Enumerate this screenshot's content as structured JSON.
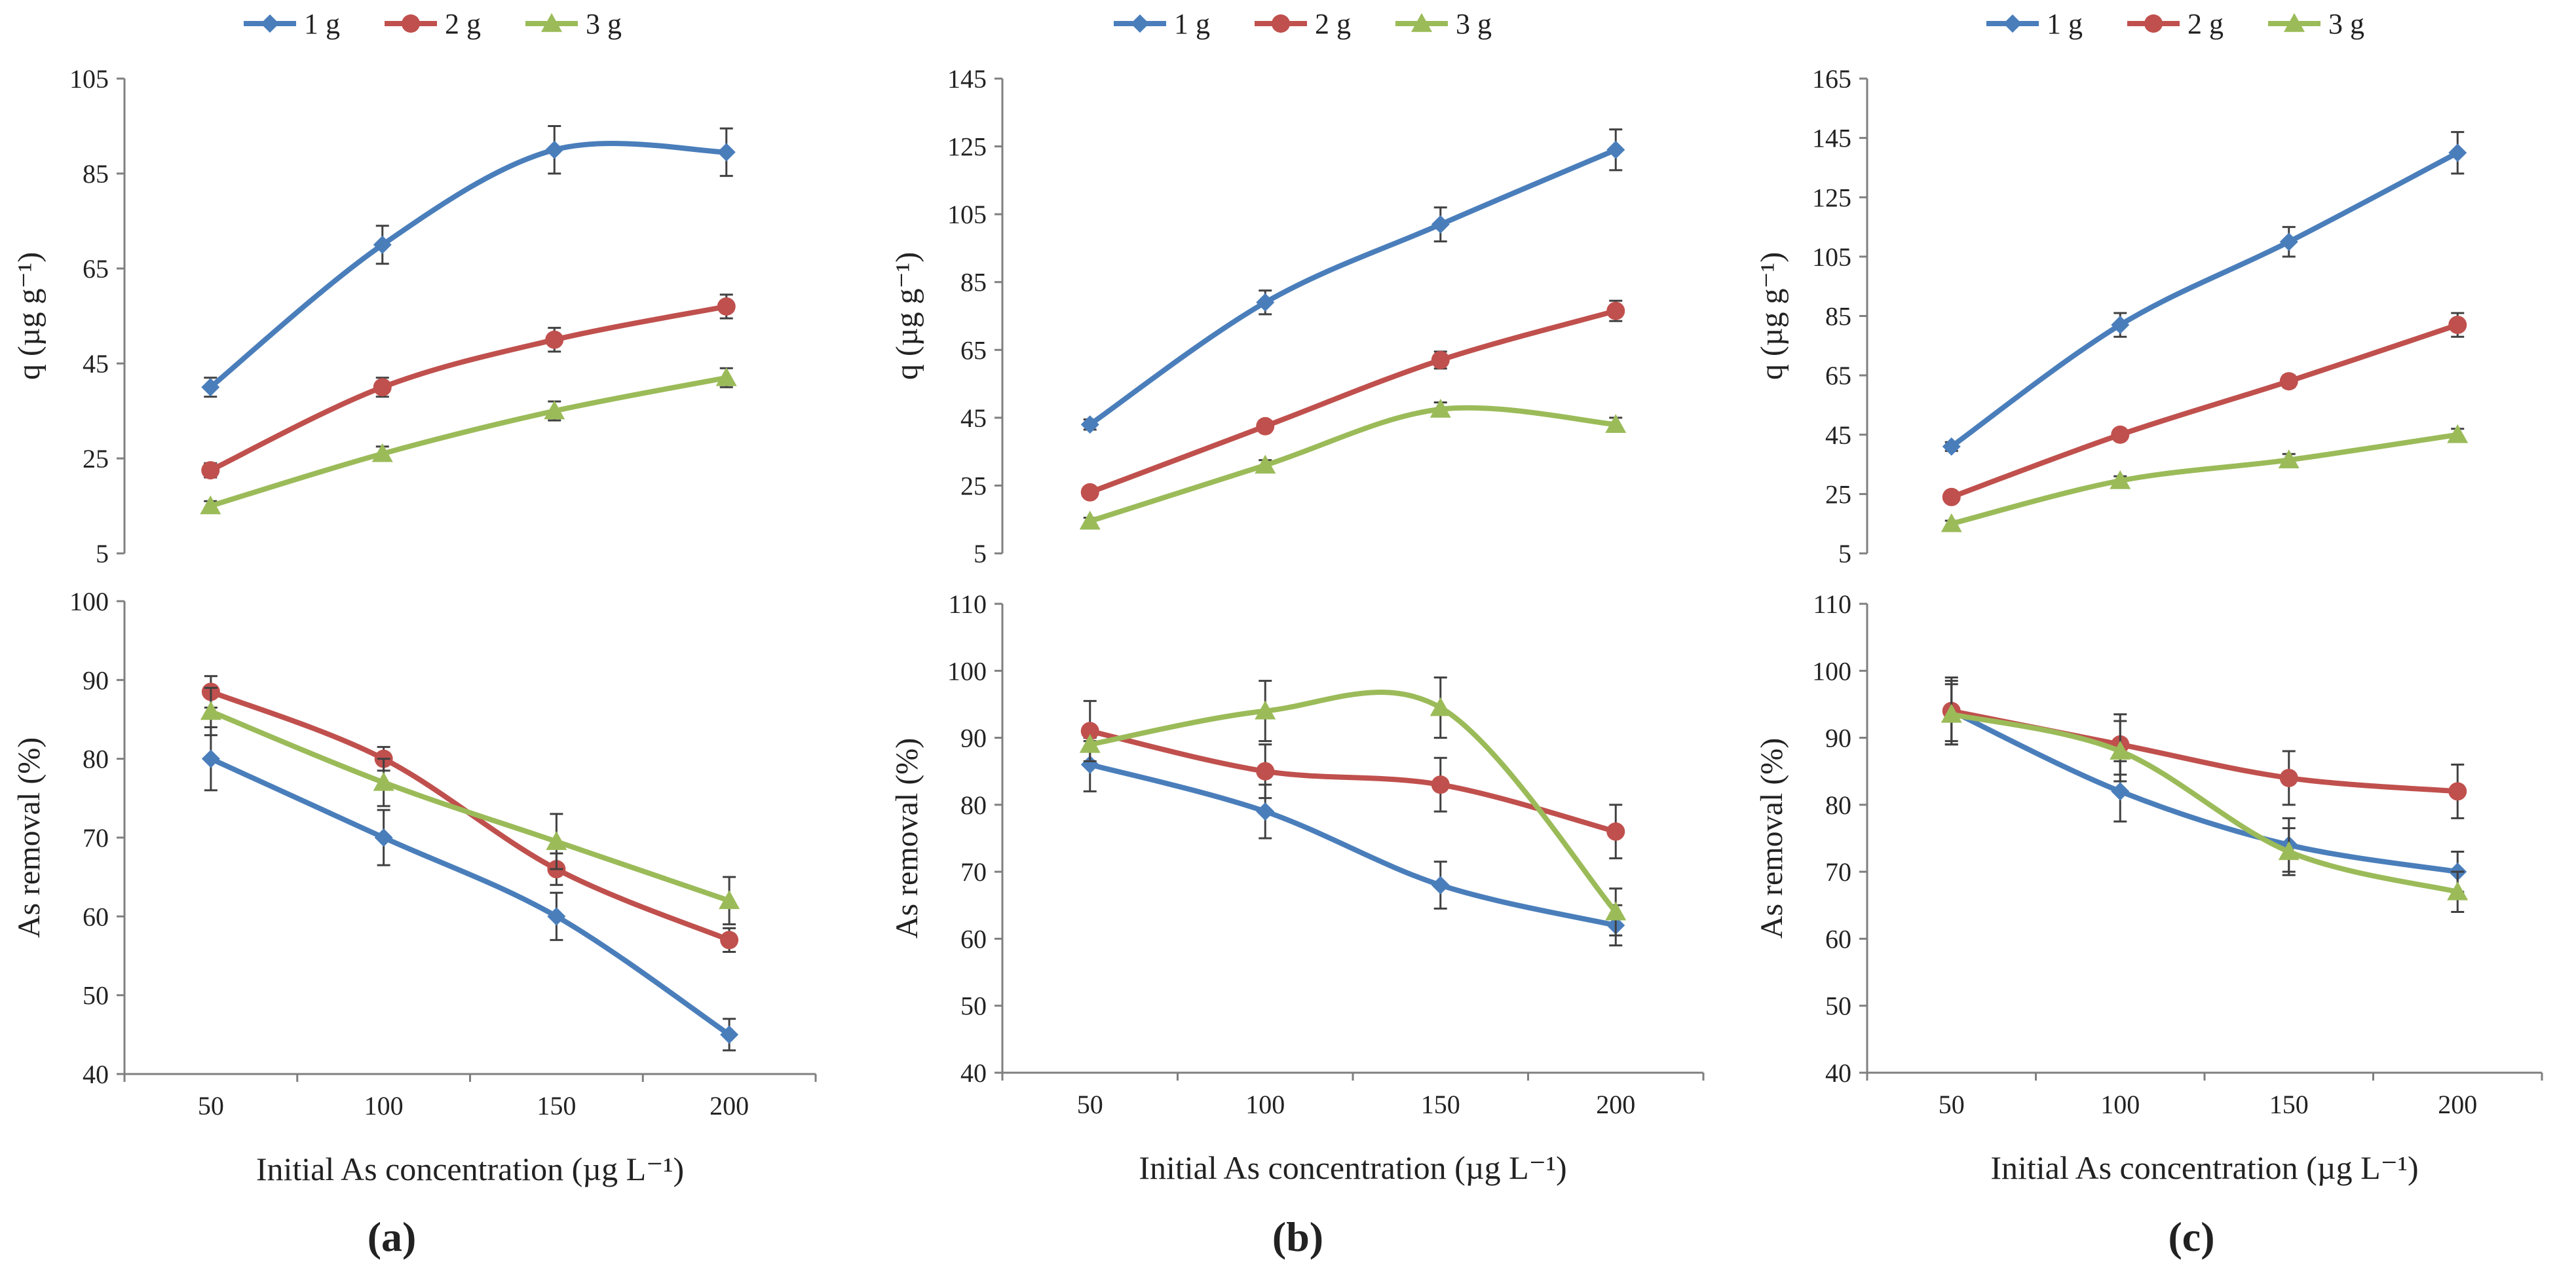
{
  "legend": [
    "1 g",
    "2 g",
    "3 g"
  ],
  "colors": {
    "1 g": "#4a7ebb",
    "2 g": "#c0504d",
    "3 g": "#9bbb59"
  },
  "panels": [
    {
      "label": "(a)",
      "xlabel": "Initial As concentration (µg L⁻¹)"
    },
    {
      "label": "(b)",
      "xlabel": "Initial As concentration (µg L⁻¹)"
    },
    {
      "label": "(c)",
      "xlabel": "Initial As concentration (µg L⁻¹)"
    }
  ],
  "chart_data": [
    {
      "type": "line",
      "panel": "a",
      "row": "top",
      "ylabel": "q (µg g⁻¹)",
      "xlabel": "",
      "categories": [
        50,
        100,
        150,
        200
      ],
      "ylim": [
        5,
        105
      ],
      "yticks": [
        5,
        25,
        45,
        65,
        85,
        105
      ],
      "series": [
        {
          "name": "1 g",
          "values": [
            40,
            70,
            90,
            89.5
          ],
          "errors": [
            2,
            4,
            5,
            5
          ]
        },
        {
          "name": "2 g",
          "values": [
            22.5,
            40,
            50,
            57
          ],
          "errors": [
            1.5,
            2,
            2.5,
            2.5
          ]
        },
        {
          "name": "3 g",
          "values": [
            15,
            26,
            35,
            42
          ],
          "errors": [
            1,
            1.5,
            2,
            2
          ]
        }
      ]
    },
    {
      "type": "line",
      "panel": "a",
      "row": "bottom",
      "ylabel": "As removal (%)",
      "xlabel": "Initial As concentration (µg L⁻¹)",
      "categories": [
        50,
        100,
        150,
        200
      ],
      "ylim": [
        40,
        100
      ],
      "yticks": [
        40,
        50,
        60,
        70,
        80,
        90,
        100
      ],
      "series": [
        {
          "name": "1 g",
          "values": [
            80,
            70,
            60,
            45
          ],
          "errors": [
            4,
            3.5,
            3,
            2
          ]
        },
        {
          "name": "2 g",
          "values": [
            88.5,
            80,
            66,
            57
          ],
          "errors": [
            2,
            1.5,
            2,
            1.5
          ]
        },
        {
          "name": "3 g",
          "values": [
            86,
            77,
            69.5,
            62
          ],
          "errors": [
            3,
            3,
            3.5,
            3
          ]
        }
      ]
    },
    {
      "type": "line",
      "panel": "b",
      "row": "top",
      "ylabel": "q (µg g⁻¹)",
      "xlabel": "",
      "categories": [
        50,
        100,
        150,
        200
      ],
      "ylim": [
        5,
        145
      ],
      "yticks": [
        5,
        25,
        45,
        65,
        85,
        105,
        125,
        145
      ],
      "series": [
        {
          "name": "1 g",
          "values": [
            43,
            79,
            102,
            124
          ],
          "errors": [
            1.5,
            3.5,
            5,
            6
          ]
        },
        {
          "name": "2 g",
          "values": [
            23,
            42.5,
            62,
            76.5
          ],
          "errors": [
            1,
            1.5,
            2.5,
            3
          ]
        },
        {
          "name": "3 g",
          "values": [
            14.5,
            31,
            47.5,
            43
          ],
          "errors": [
            1,
            1.5,
            2,
            2
          ]
        }
      ]
    },
    {
      "type": "line",
      "panel": "b",
      "row": "bottom",
      "ylabel": "As removal (%)",
      "xlabel": "Initial As concentration (µg L⁻¹)",
      "categories": [
        50,
        100,
        150,
        200
      ],
      "ylim": [
        40,
        110
      ],
      "yticks": [
        40,
        50,
        60,
        70,
        80,
        90,
        100,
        110
      ],
      "series": [
        {
          "name": "1 g",
          "values": [
            86,
            79,
            68,
            62
          ],
          "errors": [
            4,
            4,
            3.5,
            3
          ]
        },
        {
          "name": "2 g",
          "values": [
            91,
            85,
            83,
            76
          ],
          "errors": [
            4.5,
            4,
            4,
            4
          ]
        },
        {
          "name": "3 g",
          "values": [
            89,
            94,
            94.5,
            64
          ],
          "errors": [
            0.5,
            4.5,
            4.5,
            3.5
          ]
        }
      ]
    },
    {
      "type": "line",
      "panel": "c",
      "row": "top",
      "ylabel": "q (µg g⁻¹)",
      "xlabel": "",
      "categories": [
        50,
        100,
        150,
        200
      ],
      "ylim": [
        5,
        165
      ],
      "yticks": [
        5,
        25,
        45,
        65,
        85,
        105,
        125,
        145,
        165
      ],
      "series": [
        {
          "name": "1 g",
          "values": [
            41,
            82,
            110,
            140
          ],
          "errors": [
            1.5,
            4,
            5,
            7
          ]
        },
        {
          "name": "2 g",
          "values": [
            24,
            45,
            63,
            82
          ],
          "errors": [
            1,
            1.5,
            2,
            4
          ]
        },
        {
          "name": "3 g",
          "values": [
            15,
            29.5,
            36.5,
            45
          ],
          "errors": [
            1,
            1.5,
            2,
            2
          ]
        }
      ]
    },
    {
      "type": "line",
      "panel": "c",
      "row": "bottom",
      "ylabel": "As removal (%)",
      "xlabel": "Initial As concentration (µg L⁻¹)",
      "categories": [
        50,
        100,
        150,
        200
      ],
      "ylim": [
        40,
        110
      ],
      "yticks": [
        40,
        50,
        60,
        70,
        80,
        90,
        100,
        110
      ],
      "series": [
        {
          "name": "1 g",
          "values": [
            94,
            82,
            74,
            70
          ],
          "errors": [
            5,
            4.5,
            4,
            3
          ]
        },
        {
          "name": "2 g",
          "values": [
            94,
            89,
            84,
            82
          ],
          "errors": [
            4.5,
            4.5,
            4,
            4
          ]
        },
        {
          "name": "3 g",
          "values": [
            93.5,
            88,
            73,
            67
          ],
          "errors": [
            4.5,
            4.5,
            3.5,
            3
          ]
        }
      ]
    }
  ]
}
